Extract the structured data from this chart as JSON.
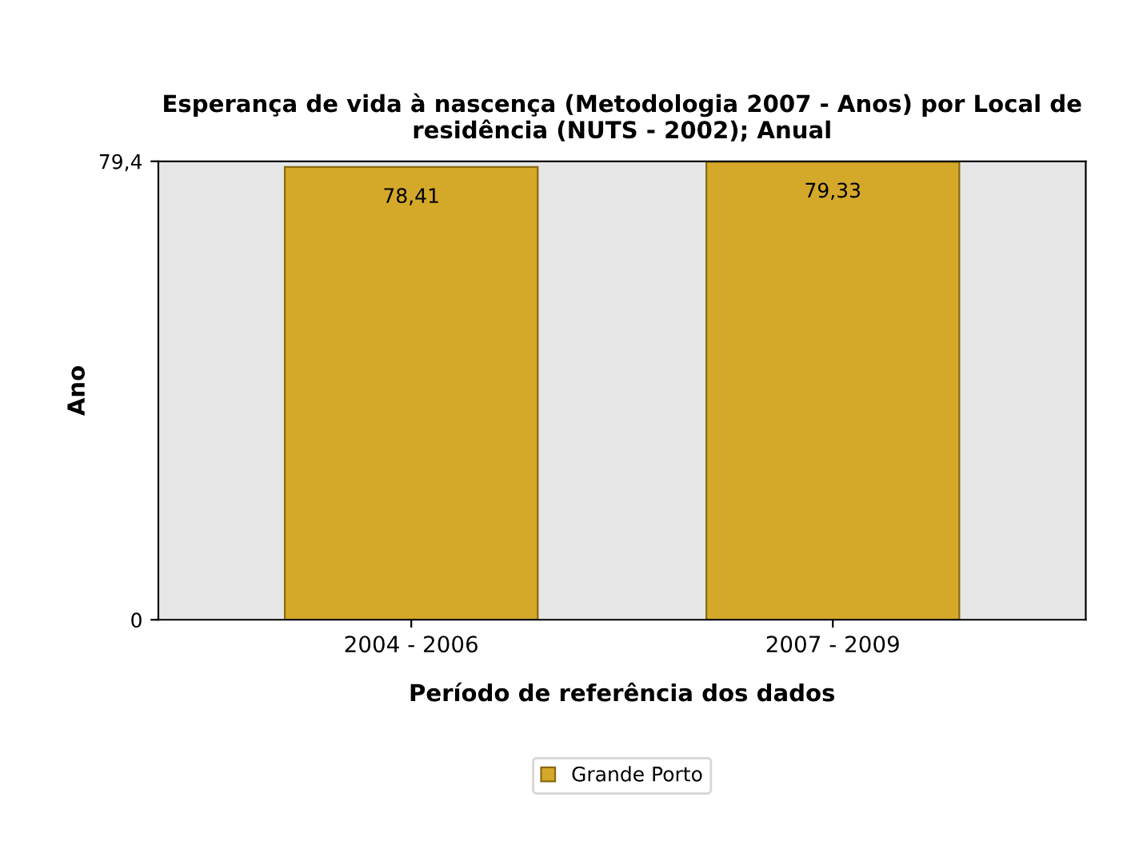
{
  "chart_data": {
    "type": "bar",
    "title": "Esperança de vida à nascença (Metodologia 2007 - Anos) por Local de residência (NUTS - 2002); Anual",
    "xlabel": "Período de referência dos dados",
    "ylabel": "Ano",
    "categories": [
      "2004 - 2006",
      "2007 - 2009"
    ],
    "series": [
      {
        "name": "Grande Porto",
        "color": "#d4a829",
        "values": [
          78.41,
          79.33
        ],
        "value_labels": [
          "78,41",
          "79,33"
        ]
      }
    ],
    "ylim": [
      0,
      79.4
    ],
    "yticks": [
      {
        "value": 0,
        "label": "0"
      },
      {
        "value": 79.4,
        "label": "79,4"
      }
    ],
    "grid": false,
    "legend": "bottom"
  }
}
